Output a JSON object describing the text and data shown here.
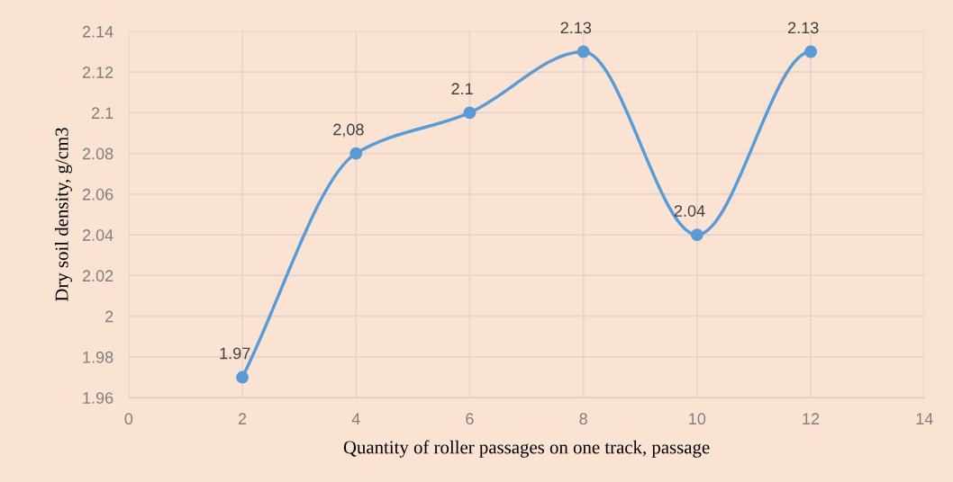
{
  "chart_data": {
    "type": "line",
    "xlabel": "Quantity of roller passages on one track, passage",
    "ylabel": "Dry soil density, g/cm3",
    "x": [
      2,
      4,
      6,
      8,
      10,
      12
    ],
    "series": [
      {
        "color": "#5b9bd5",
        "values": [
          1.97,
          2.08,
          2.1,
          2.13,
          2.04,
          2.13
        ],
        "value_labels": [
          "1.97",
          "2,08",
          "2.1",
          "2.13",
          "2.04",
          "2.13"
        ]
      }
    ],
    "xlim": [
      0,
      14
    ],
    "xticks": [
      0,
      2,
      4,
      6,
      8,
      10,
      12,
      14
    ],
    "ylim": [
      1.96,
      2.14
    ],
    "yticks": [
      1.96,
      1.98,
      2,
      2.02,
      2.04,
      2.06,
      2.08,
      2.1,
      2.12,
      2.14
    ],
    "grid": true,
    "marker": "circle",
    "line_style": "solid"
  }
}
